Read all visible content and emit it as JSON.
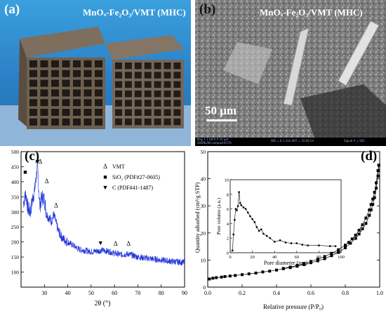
{
  "panel_a": {
    "label": "(a)",
    "title": "MnOₓ-Fe₂O₃/VMT (MHC)"
  },
  "panel_b": {
    "label": "(b)",
    "title": "MnOₓ-Fe₂O₃/VMT (MHC)",
    "scale_bar": "50 μm",
    "footer_left": "May 1   1.00 K X   10 μm",
    "footer_mid": "WD = 6.1 mm   EHT = 10.00 kV",
    "footer_right": "Signal A = SE2",
    "footer_left2": "SHENLAN compact#170"
  },
  "panel_c": {
    "label": "(c)",
    "xlabel": "2θ (°)",
    "legend": [
      {
        "symbol": "Δ",
        "text": "VMT"
      },
      {
        "symbol": "■",
        "text": "SiO₂ (PDF#27-0605)"
      },
      {
        "symbol": "▼",
        "text": "C (PDF#41-1487)"
      }
    ],
    "chart_data": {
      "type": "line",
      "xlim": [
        20,
        90
      ],
      "ylim": [
        50,
        500
      ],
      "xticks": [
        30,
        40,
        50,
        60,
        70,
        80,
        90
      ],
      "yticks": [
        100,
        150,
        200,
        250,
        300,
        350,
        400,
        450,
        500
      ],
      "color": "#1a2fd6",
      "envelope": [
        [
          21,
          330
        ],
        [
          22,
          360
        ],
        [
          23,
          310
        ],
        [
          24,
          300
        ],
        [
          25,
          345
        ],
        [
          26,
          380
        ],
        [
          27,
          450
        ],
        [
          27.5,
          390
        ],
        [
          28,
          320
        ],
        [
          29,
          350
        ],
        [
          30,
          340
        ],
        [
          31,
          290
        ],
        [
          33,
          270
        ],
        [
          34,
          290
        ],
        [
          36,
          235
        ],
        [
          38,
          210
        ],
        [
          40,
          200
        ],
        [
          42,
          190
        ],
        [
          45,
          175
        ],
        [
          50,
          168
        ],
        [
          55,
          172
        ],
        [
          58,
          168
        ],
        [
          60,
          162
        ],
        [
          63,
          158
        ],
        [
          66,
          160
        ],
        [
          70,
          150
        ],
        [
          75,
          145
        ],
        [
          80,
          140
        ],
        [
          85,
          135
        ],
        [
          90,
          132
        ]
      ],
      "markers": [
        {
          "symbol": "■",
          "x": 21.8,
          "y": 425
        },
        {
          "symbol": "▼",
          "x": 27.0,
          "y": 460
        },
        {
          "symbol": "Δ",
          "x": 28.2,
          "y": 460
        },
        {
          "symbol": "Δ",
          "x": 31.0,
          "y": 395
        },
        {
          "symbol": "Δ",
          "x": 35.0,
          "y": 315
        },
        {
          "symbol": "▼",
          "x": 54.0,
          "y": 190
        },
        {
          "symbol": "Δ",
          "x": 60.5,
          "y": 188
        },
        {
          "symbol": "Δ",
          "x": 66.0,
          "y": 188
        }
      ]
    }
  },
  "panel_d": {
    "label": "(d)",
    "xlabel": "Relative pressure (P/P₀)",
    "ylabel": "Quantity adsorbed (cm³/g STP)",
    "chart_data": {
      "type": "scatter",
      "xlim": [
        0.0,
        1.0
      ],
      "ylim": [
        0,
        50
      ],
      "xticks": [
        0.0,
        0.2,
        0.4,
        0.6,
        0.8,
        1.0
      ],
      "yticks": [
        0,
        10,
        20,
        30,
        40,
        50
      ],
      "series": [
        {
          "x": [
            0.01,
            0.03,
            0.05,
            0.08,
            0.1,
            0.13,
            0.16,
            0.2,
            0.24,
            0.28,
            0.32,
            0.36,
            0.4,
            0.44,
            0.48,
            0.52,
            0.56,
            0.6,
            0.64,
            0.68,
            0.72,
            0.76,
            0.8,
            0.83,
            0.86,
            0.88,
            0.9,
            0.92,
            0.94,
            0.95,
            0.96,
            0.97,
            0.98,
            0.99,
            0.995
          ],
          "y": [
            3.0,
            3.3,
            3.5,
            3.7,
            3.9,
            4.1,
            4.3,
            4.6,
            4.9,
            5.2,
            5.6,
            5.9,
            6.3,
            6.8,
            7.2,
            7.7,
            8.3,
            9.0,
            9.7,
            10.5,
            11.6,
            12.8,
            14.5,
            16.2,
            18.0,
            19.6,
            21.5,
            23.5,
            26.5,
            28.5,
            30.5,
            33.0,
            36.5,
            41.0,
            45.0
          ]
        },
        {
          "x": [
            0.995,
            0.99,
            0.98,
            0.97,
            0.96,
            0.95,
            0.94,
            0.92,
            0.9,
            0.88,
            0.86,
            0.84,
            0.82,
            0.8,
            0.76,
            0.72,
            0.68,
            0.64,
            0.6,
            0.56,
            0.52,
            0.48,
            0.44
          ],
          "y": [
            45.0,
            43.0,
            38.5,
            35.0,
            32.5,
            30.5,
            28.5,
            25.5,
            23.0,
            21.0,
            19.2,
            17.8,
            16.5,
            15.5,
            13.8,
            12.5,
            11.3,
            10.3,
            9.5,
            8.7,
            8.0,
            7.4,
            6.9
          ]
        }
      ]
    },
    "inset": {
      "xlabel": "Pore diameter (nm)",
      "ylabel": "Pore volume (a.u.)",
      "chart_data": {
        "type": "line",
        "xlim": [
          0,
          100
        ],
        "ylim": [
          0,
          10
        ],
        "xticks": [
          0,
          20,
          40,
          60,
          80,
          100
        ],
        "yticks": [
          0,
          2,
          4,
          6,
          8,
          10
        ],
        "x": [
          2,
          3,
          4,
          5,
          6,
          7,
          8,
          9,
          10,
          12,
          14,
          16,
          18,
          20,
          22,
          24,
          26,
          28,
          30,
          33,
          36,
          40,
          45,
          50,
          55,
          60,
          65,
          70,
          80,
          90,
          95
        ],
        "y": [
          0.3,
          2.5,
          4.5,
          6.0,
          5.8,
          6.4,
          8.3,
          6.8,
          6.5,
          6.2,
          6.0,
          5.5,
          5.0,
          4.6,
          4.2,
          3.5,
          3.0,
          3.2,
          2.6,
          2.3,
          2.0,
          1.5,
          1.7,
          1.4,
          1.3,
          1.3,
          1.1,
          1.0,
          1.0,
          0.9,
          0.9
        ]
      }
    }
  }
}
